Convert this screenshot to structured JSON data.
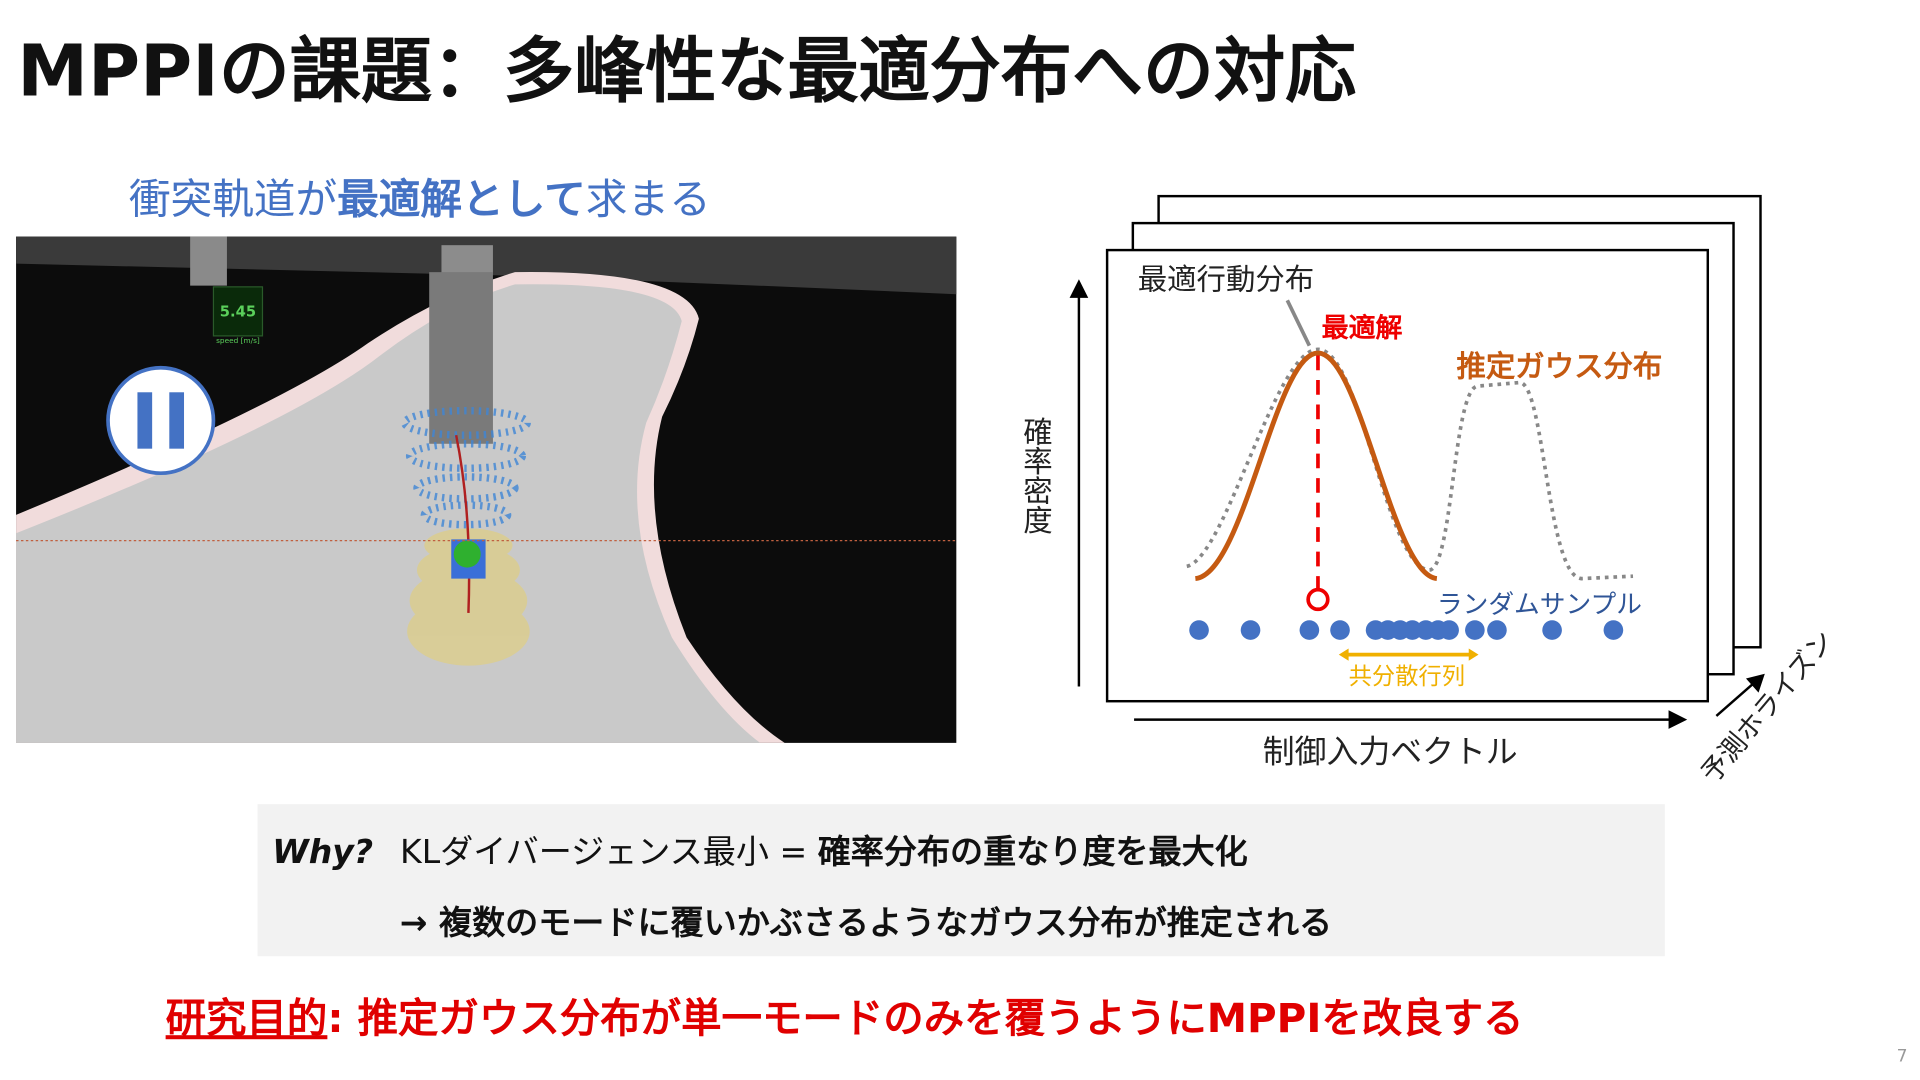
{
  "title": "MPPIの課題：多峰性な最適分布への対応",
  "left_panel": {
    "caption": [
      "衝突軌道が",
      "最適解として",
      "求まる"
    ],
    "speed_value": "5.45",
    "speed_unit": "speed [m/s]"
  },
  "diagram": {
    "y_label": "確率密度",
    "x_label": "制御入力ベクトル",
    "z_label": "予測ホライズン",
    "optimal_distribution": "最適行動分布",
    "optimal_solution": "最適解",
    "estimated_gaussian": "推定ガウス分布",
    "random_samples": "ランダムサンプル",
    "covariance": "共分散行列"
  },
  "why_box": {
    "lead": "Why?",
    "line1_plain": "KLダイバージェンス最小 = ",
    "line1_bold": "確率分布の重なり度を最大化",
    "line2": "→ 複数のモードに覆いかぶさるようなガウス分布が推定される"
  },
  "objective": {
    "label": "研究目的",
    "text": ": 推定ガウス分布が単一モードのみを覆うようにMPPIを改良する"
  },
  "page_number": "7"
}
